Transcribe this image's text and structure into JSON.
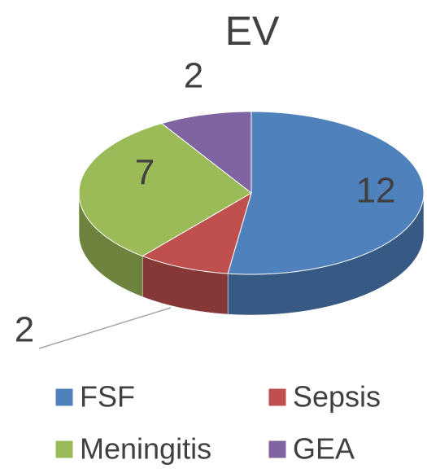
{
  "chart_data": {
    "type": "pie",
    "title": "EV",
    "categories": [
      "FSF",
      "Sepsis",
      "Meningitis",
      "GEA"
    ],
    "values": [
      12,
      2,
      7,
      2
    ],
    "colors": [
      "#4f81bd",
      "#c0504d",
      "#9bbb59",
      "#8064a2"
    ],
    "legend": "bottom",
    "style": "3d"
  }
}
